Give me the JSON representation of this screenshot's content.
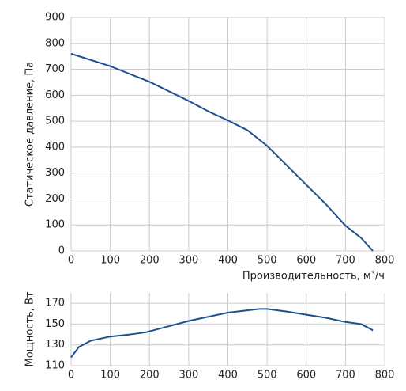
{
  "chart_data": [
    {
      "type": "line",
      "ylabel": "Статическое давление, Па",
      "xlabel": "Производительность, м³/ч",
      "x": [
        0,
        100,
        170,
        200,
        300,
        350,
        400,
        450,
        500,
        550,
        600,
        650,
        700,
        740,
        770
      ],
      "values": [
        760,
        712,
        670,
        652,
        578,
        538,
        503,
        465,
        405,
        330,
        255,
        180,
        97,
        50,
        0
      ],
      "color": "#1d4f91",
      "xlim": [
        0,
        800
      ],
      "ylim": [
        0,
        900
      ],
      "xticks": [
        0,
        100,
        200,
        300,
        400,
        500,
        600,
        700,
        800
      ],
      "yticks": [
        0,
        100,
        200,
        300,
        400,
        500,
        600,
        700,
        800,
        900
      ],
      "grid": true
    },
    {
      "type": "line",
      "ylabel": "Мощность, Вт",
      "x": [
        0,
        20,
        50,
        100,
        150,
        190,
        250,
        300,
        400,
        480,
        500,
        550,
        600,
        650,
        700,
        740,
        770
      ],
      "values": [
        118,
        128,
        134,
        138,
        140,
        142,
        148,
        153,
        161,
        164.5,
        164.5,
        162,
        159,
        156,
        152,
        150,
        144
      ],
      "color": "#1d4f91",
      "xlim": [
        0,
        800
      ],
      "ylim": [
        110,
        180
      ],
      "xticks": [
        0,
        100,
        200,
        300,
        400,
        500,
        600,
        700,
        800
      ],
      "yticks": [
        110,
        130,
        150,
        170
      ],
      "grid": true
    }
  ]
}
